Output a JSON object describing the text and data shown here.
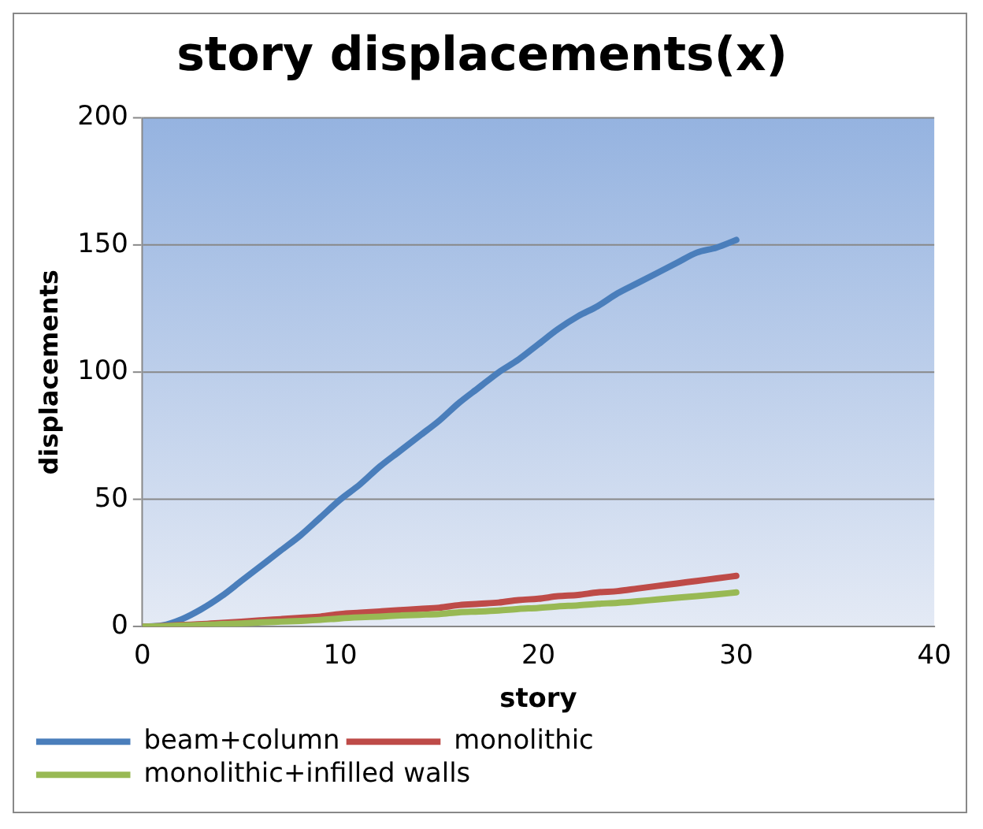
{
  "chart_data": {
    "type": "line",
    "title": "story displacements(x)",
    "xlabel": "story",
    "ylabel": "displacements",
    "x": [
      0,
      1,
      2,
      3,
      4,
      5,
      6,
      7,
      8,
      9,
      10,
      11,
      12,
      13,
      14,
      15,
      16,
      17,
      18,
      19,
      20,
      21,
      22,
      23,
      24,
      25,
      26,
      27,
      28,
      29,
      30
    ],
    "series": [
      {
        "name": "beam+column",
        "color": "#4a7ebb",
        "values": [
          0,
          0.5,
          3,
          7,
          12,
          18,
          24,
          30,
          36,
          43,
          50,
          56,
          63,
          69,
          75,
          81,
          88,
          94,
          100,
          105,
          111,
          117,
          122,
          126,
          131,
          135,
          139,
          143,
          147,
          149,
          152
        ]
      },
      {
        "name": "monolithic",
        "color": "#be4b48",
        "values": [
          0,
          0.3,
          0.7,
          1,
          1.5,
          2,
          2.5,
          3,
          3.5,
          4,
          5,
          5.5,
          6,
          6.5,
          7,
          7.5,
          8.5,
          9,
          9.5,
          10.5,
          11,
          12,
          12.5,
          13.5,
          14,
          15,
          16,
          17,
          18,
          19,
          20
        ]
      },
      {
        "name": "monolithic+infilled walls",
        "color": "#98b954",
        "values": [
          0,
          0.2,
          0.5,
          0.7,
          1,
          1.3,
          1.7,
          2,
          2.3,
          2.7,
          3.3,
          3.7,
          4,
          4.4,
          4.7,
          5,
          5.7,
          6,
          6.4,
          7,
          7.4,
          8,
          8.4,
          9,
          9.4,
          10,
          10.7,
          11.4,
          12,
          12.7,
          13.5
        ]
      }
    ],
    "xlim": [
      0,
      40
    ],
    "xticks": [
      0,
      10,
      20,
      30,
      40
    ],
    "ylim": [
      0,
      200
    ],
    "yticks": [
      0,
      50,
      100,
      150,
      200
    ],
    "grid": "y",
    "legend": "bottom",
    "marker": "none",
    "line_style": "solid"
  }
}
